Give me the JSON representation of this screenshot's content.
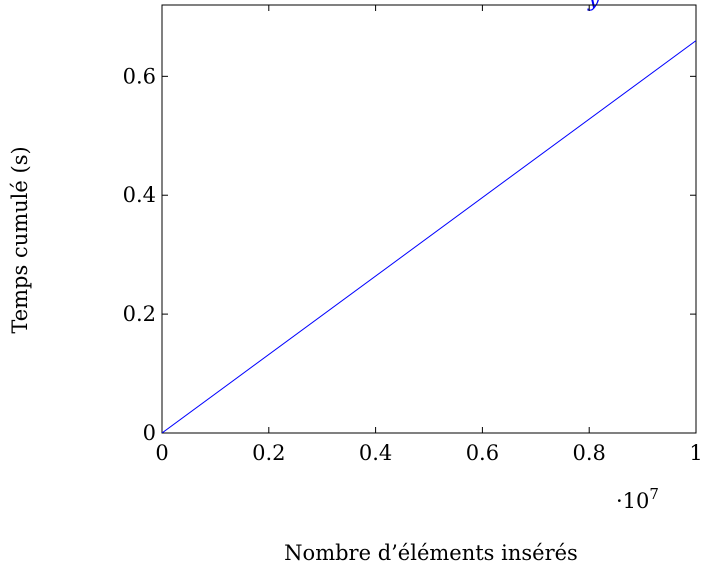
{
  "chart_data": {
    "type": "line",
    "title": "",
    "xlabel": "Nombre d’éléments insérés",
    "ylabel": "Temps cumulé (s)",
    "x_scale_multiplier_label": "·10",
    "x_scale_exponent": "7",
    "xlim": [
      0,
      1
    ],
    "ylim": [
      0,
      0.72
    ],
    "x_ticks": [
      0,
      0.2,
      0.4,
      0.6,
      0.8,
      1
    ],
    "x_tick_labels": [
      "0",
      "0.2",
      "0.4",
      "0.6",
      "0.8",
      "1"
    ],
    "y_ticks": [
      0,
      0.2,
      0.4,
      0.6
    ],
    "y_tick_labels": [
      "0",
      "0.2",
      "0.4",
      "0.6"
    ],
    "grid": false,
    "legend_placement": "top-right (clipped)",
    "series": [
      {
        "color": "#0000ff",
        "x": [
          0,
          1
        ],
        "y": [
          0,
          0.66
        ]
      }
    ]
  }
}
